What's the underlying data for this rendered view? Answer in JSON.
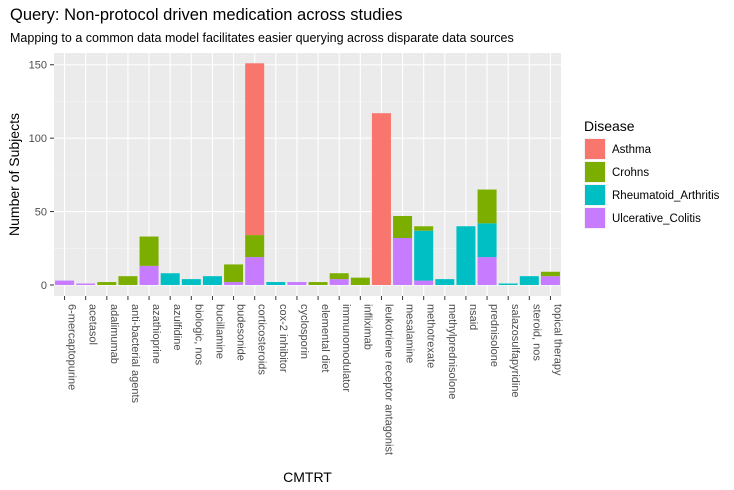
{
  "chart_data": {
    "type": "bar",
    "stacked": true,
    "title": "Query: Non-protocol driven medication across studies",
    "subtitle": "Mapping to a common data model facilitates easier querying across disparate data sources",
    "xlabel": "CMTRT",
    "ylabel": "Number of Subjects",
    "ylim": [
      -7.5,
      158
    ],
    "yticks": [
      0,
      50,
      100,
      150
    ],
    "grid": true,
    "legend": {
      "title": "Disease",
      "position": "right"
    },
    "categories": [
      "6-mercaptopurine",
      "acetasol",
      "adalimumab",
      "anti-bacterial agents",
      "azathioprine",
      "azulfidine",
      "biologic, nos",
      "bucillamine",
      "budesonide",
      "corticosteroids",
      "cox-2 inhibitor",
      "cyclosporin",
      "elemental diet",
      "immunomodulator",
      "infliximab",
      "leukotriene receptor antagonist",
      "mesalamine",
      "methotrexate",
      "methylprednisolone",
      "nsaid",
      "prednisolone",
      "salazosulfapyridine",
      "steroid, nos",
      "topical therapy"
    ],
    "series": [
      {
        "name": "Asthma",
        "color": "#F8766D",
        "values": [
          0,
          0,
          0,
          0,
          0,
          0,
          0,
          0,
          0,
          117,
          0,
          0,
          0,
          0,
          0,
          117,
          0,
          0,
          0,
          0,
          0,
          0,
          0,
          0
        ]
      },
      {
        "name": "Crohns",
        "color": "#7CAE00",
        "values": [
          0,
          0,
          2,
          6,
          20,
          0,
          0,
          0,
          12,
          15,
          0,
          0,
          2,
          4,
          5,
          0,
          15,
          3,
          0,
          0,
          23,
          0,
          0,
          3
        ]
      },
      {
        "name": "Rheumatoid_Arthritis",
        "color": "#00BFC4",
        "values": [
          0,
          0,
          0,
          0,
          0,
          8,
          4,
          6,
          0,
          0,
          2,
          0,
          0,
          0,
          0,
          0,
          0,
          34,
          4,
          40,
          23,
          1,
          6,
          0
        ]
      },
      {
        "name": "Ulcerative_Colitis",
        "color": "#C77CFF",
        "values": [
          3,
          1,
          0,
          0,
          13,
          0,
          0,
          0,
          2,
          19,
          0,
          2,
          0,
          4,
          0,
          0,
          32,
          3,
          0,
          0,
          19,
          0,
          0,
          6
        ]
      }
    ]
  }
}
